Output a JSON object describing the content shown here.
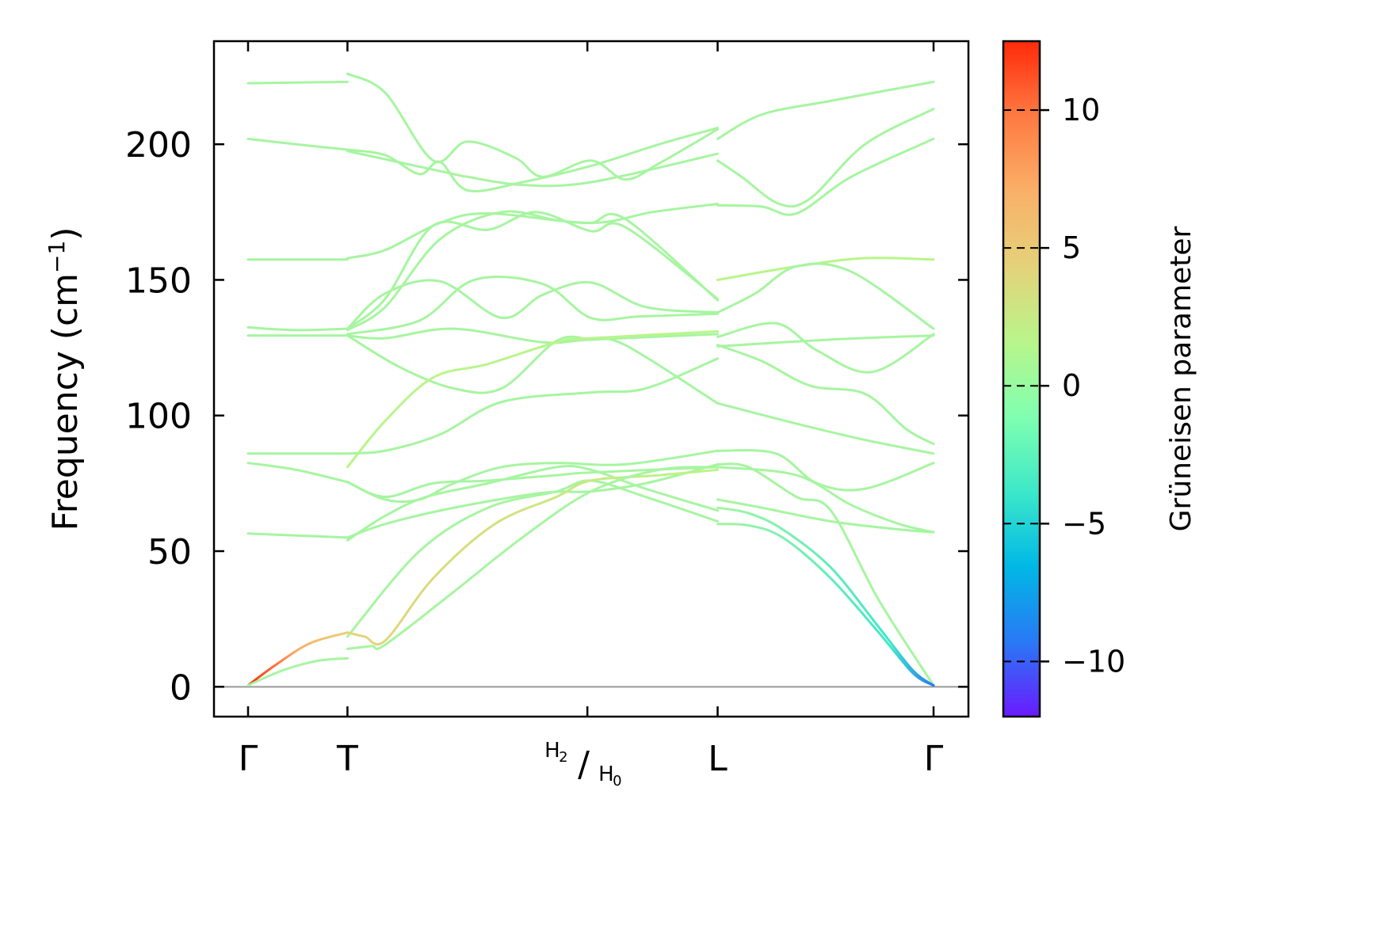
{
  "chart_data": {
    "type": "line",
    "ylabel": "Frequency (cm",
    "ylabel_sup": "−1",
    "ylabel_close": ")",
    "ylim": [
      -11,
      238
    ],
    "yticks": [
      0,
      50,
      100,
      150,
      200
    ],
    "path_labels": [
      {
        "label": "Γ",
        "position": 0.0
      },
      {
        "label": "T",
        "position": 0.145
      },
      {
        "label_top": "H",
        "label_top_sub": "2",
        "label_bottom": "H",
        "label_bottom_sub": "0",
        "position": 0.495
      },
      {
        "label": "L",
        "position": 0.685
      },
      {
        "label": "Γ",
        "position": 1.0
      }
    ],
    "zero_line": true,
    "colorbar": {
      "label": "Grüneisen parameter",
      "range": [
        -12,
        12.5
      ],
      "ticks": [
        -10,
        -5,
        0,
        5,
        10
      ],
      "tick_labels": [
        "−10",
        "−5",
        "0",
        "5",
        "10"
      ],
      "colormap": [
        "#6a1bff",
        "#2979f5",
        "#00b8e6",
        "#3de8c8",
        "#80ffb0",
        "#b9f58a",
        "#e4d27a",
        "#f9b068",
        "#ff7a42",
        "#ff2a0a"
      ]
    },
    "series": [
      {
        "color": "#a6f5a0",
        "x": [
          0,
          0.145
        ],
        "y": [
          222.5,
          223.0
        ]
      },
      {
        "color": "#a6f5a0",
        "x": [
          0,
          0.07,
          0.145
        ],
        "y": [
          202.0,
          200.0,
          198.0
        ]
      },
      {
        "color": "#a6f5a0",
        "x": [
          0,
          0.145
        ],
        "y": [
          157.5,
          157.5
        ]
      },
      {
        "color": "#a6f5a0",
        "x": [
          0,
          0.07,
          0.145
        ],
        "y": [
          132.5,
          131.5,
          132.0
        ]
      },
      {
        "color": "#a6f5a0",
        "x": [
          0,
          0.145
        ],
        "y": [
          129.5,
          129.5
        ]
      },
      {
        "color": "#a6f5a0",
        "x": [
          0,
          0.145
        ],
        "y": [
          86.0,
          86.0
        ]
      },
      {
        "color": "#a6f5a0",
        "x": [
          0,
          0.07,
          0.145
        ],
        "y": [
          82.5,
          80.0,
          75.5
        ]
      },
      {
        "color": "#a6f5a0",
        "x": [
          0,
          0.145
        ],
        "y": [
          56.5,
          55.0
        ]
      },
      {
        "color": "#ff3010",
        "gradient": [
          "#ff2a0a",
          "#f9b068",
          "#e4d27a"
        ],
        "x": [
          0,
          0.04,
          0.09,
          0.145
        ],
        "y": [
          0.5,
          8.0,
          16.0,
          20.0
        ]
      },
      {
        "color": "#a6f5a0",
        "x": [
          0,
          0.05,
          0.1,
          0.145
        ],
        "y": [
          0.5,
          6.0,
          9.5,
          10.5
        ]
      },
      {
        "color": "#a6f5a0",
        "x": [
          0.145,
          0.2,
          0.27,
          0.32,
          0.39,
          0.43,
          0.5,
          0.55,
          0.6,
          0.685
        ],
        "y": [
          226.0,
          219.0,
          194.0,
          201.0,
          195.0,
          188.0,
          194.0,
          187.0,
          193.0,
          205.5
        ]
      },
      {
        "color": "#a6f5a0",
        "x": [
          0.145,
          0.2,
          0.25,
          0.28,
          0.32,
          0.4,
          0.5,
          0.6,
          0.685
        ],
        "y": [
          198.0,
          196.0,
          189.0,
          193.5,
          183.0,
          186.0,
          192.0,
          200.0,
          206.0
        ]
      },
      {
        "color": "#a6f5a0",
        "x": [
          0.145,
          0.3,
          0.32,
          0.4,
          0.5,
          0.685
        ],
        "y": [
          197.5,
          189.0,
          188.0,
          185.0,
          186.0,
          196.5
        ]
      },
      {
        "color": "#a6f5a0",
        "x": [
          0.145,
          0.2,
          0.28,
          0.35,
          0.5,
          0.59,
          0.685
        ],
        "y": [
          158.0,
          161.0,
          171.0,
          174.5,
          171.0,
          175.0,
          178.0
        ]
      },
      {
        "color": "#a6f5a0",
        "x": [
          0.145,
          0.2,
          0.27,
          0.35,
          0.42,
          0.5,
          0.55,
          0.685
        ],
        "y": [
          132.0,
          143.0,
          170.0,
          168.5,
          175.0,
          168.0,
          169.5,
          143.0
        ]
      },
      {
        "color": "#a6f5a0",
        "x": [
          0.145,
          0.2,
          0.28,
          0.37,
          0.45,
          0.5,
          0.55,
          0.685
        ],
        "y": [
          131.5,
          140.0,
          165.0,
          175.0,
          172.0,
          171.0,
          172.5,
          142.5
        ]
      },
      {
        "color": "#a6f5a0",
        "x": [
          0.145,
          0.2,
          0.28,
          0.37,
          0.43,
          0.5,
          0.58,
          0.685
        ],
        "y": [
          132.0,
          145.0,
          149.5,
          136.0,
          144.5,
          149.0,
          140.0,
          138.0
        ]
      },
      {
        "color": "#a6f5a0",
        "x": [
          0.145,
          0.25,
          0.33,
          0.43,
          0.5,
          0.57,
          0.685
        ],
        "y": [
          130.0,
          135.0,
          150.0,
          148.5,
          136.0,
          136.5,
          137.5
        ]
      },
      {
        "color": "#a6f5a0",
        "x": [
          0.145,
          0.2,
          0.3,
          0.43,
          0.5,
          0.685
        ],
        "y": [
          129.5,
          128.5,
          132.0,
          127.0,
          128.0,
          130.0
        ]
      },
      {
        "color": "#a6f5a0",
        "x": [
          0.145,
          0.22,
          0.3,
          0.37,
          0.45,
          0.5,
          0.55,
          0.685
        ],
        "y": [
          129.5,
          118.0,
          110.0,
          110.0,
          127.5,
          128.0,
          126.0,
          104.5
        ]
      },
      {
        "color": "#b9f58a",
        "x": [
          0.145,
          0.2,
          0.27,
          0.35,
          0.45,
          0.5,
          0.685
        ],
        "y": [
          81.0,
          98.0,
          114.0,
          119.0,
          127.0,
          128.5,
          131.0
        ]
      },
      {
        "color": "#a6f5a0",
        "x": [
          0.145,
          0.2,
          0.28,
          0.37,
          0.5,
          0.58,
          0.685
        ],
        "y": [
          86.0,
          87.0,
          93.0,
          105.0,
          108.5,
          110.0,
          121.0
        ]
      },
      {
        "color": "#a6f5a0",
        "x": [
          0.145,
          0.2,
          0.27,
          0.35,
          0.45,
          0.5,
          0.685
        ],
        "y": [
          75.5,
          70.0,
          75.0,
          76.0,
          78.0,
          79.0,
          81.0
        ]
      },
      {
        "color": "#a6f5a0",
        "x": [
          0.145,
          0.2,
          0.25,
          0.3,
          0.37,
          0.45,
          0.55,
          0.685
        ],
        "y": [
          75.5,
          69.0,
          69.0,
          75.0,
          81.0,
          82.5,
          82.0,
          87.0
        ]
      },
      {
        "color": "#a6f5a0",
        "x": [
          0.145,
          0.2,
          0.26,
          0.35,
          0.45,
          0.5,
          0.58,
          0.685
        ],
        "y": [
          54.0,
          63.0,
          70.0,
          75.0,
          81.0,
          80.0,
          73.0,
          65.0
        ]
      },
      {
        "color": "#a6f5a0",
        "x": [
          0.145,
          0.2,
          0.3,
          0.43,
          0.5,
          0.58,
          0.685
        ],
        "y": [
          55.0,
          60.0,
          66.0,
          71.5,
          72.0,
          75.0,
          82.0
        ]
      },
      {
        "color": "#a6f5a0",
        "x": [
          0.145,
          0.25,
          0.35,
          0.45,
          0.5,
          0.58,
          0.685
        ],
        "y": [
          18.5,
          50.0,
          66.0,
          72.0,
          76.0,
          70.0,
          61.0
        ]
      },
      {
        "color": "#e4d27a",
        "gradient": [
          "#e4d27a",
          "#b9f58a"
        ],
        "x": [
          0.145,
          0.17,
          0.2,
          0.27,
          0.36,
          0.45,
          0.5,
          0.6,
          0.685
        ],
        "y": [
          20.0,
          18.5,
          17.0,
          40.0,
          60.0,
          70.0,
          76.0,
          78.0,
          80.0
        ]
      },
      {
        "color": "#a6f5a0",
        "x": [
          0.145,
          0.18,
          0.2,
          0.3,
          0.4,
          0.5,
          0.6,
          0.685
        ],
        "y": [
          14.0,
          15.0,
          15.5,
          35.0,
          55.0,
          72.0,
          80.0,
          81.0
        ]
      },
      {
        "color": "#a6f5a0",
        "x": [
          0.685,
          0.75,
          0.85,
          1.0
        ],
        "y": [
          202.0,
          211.0,
          216.0,
          223.0
        ]
      },
      {
        "color": "#a6f5a0",
        "x": [
          0.685,
          0.72,
          0.775,
          0.82,
          0.9,
          1.0
        ],
        "y": [
          194.0,
          188.0,
          178.0,
          180.0,
          200.0,
          213.0
        ]
      },
      {
        "color": "#a6f5a0",
        "x": [
          0.685,
          0.75,
          0.8,
          0.88,
          1.0
        ],
        "y": [
          177.5,
          177.0,
          174.5,
          188.0,
          202.0
        ]
      },
      {
        "color": "#b9f58a",
        "x": [
          0.685,
          0.8,
          0.9,
          1.0
        ],
        "y": [
          150.0,
          155.0,
          158.0,
          157.5
        ]
      },
      {
        "color": "#a6f5a0",
        "x": [
          0.685,
          0.74,
          0.8,
          0.88,
          1.0
        ],
        "y": [
          138.0,
          145.0,
          155.0,
          153.0,
          132.0
        ]
      },
      {
        "color": "#a6f5a0",
        "x": [
          0.685,
          0.77,
          0.83,
          0.91,
          1.0
        ],
        "y": [
          129.0,
          134.0,
          124.0,
          116.0,
          130.0
        ]
      },
      {
        "color": "#a6f5a0",
        "x": [
          0.685,
          0.85,
          1.0
        ],
        "y": [
          125.5,
          128.0,
          129.5
        ]
      },
      {
        "color": "#a6f5a0",
        "x": [
          0.685,
          0.75,
          0.82,
          0.9,
          0.96,
          1.0
        ],
        "y": [
          126.0,
          120.0,
          111.0,
          108.0,
          95.0,
          89.5
        ]
      },
      {
        "color": "#a6f5a0",
        "x": [
          0.685,
          0.8,
          0.9,
          1.0
        ],
        "y": [
          104.5,
          97.0,
          91.0,
          86.0
        ]
      },
      {
        "color": "#a6f5a0",
        "x": [
          0.685,
          0.77,
          0.83,
          0.9,
          1.0
        ],
        "y": [
          87.0,
          86.0,
          75.0,
          73.0,
          82.5
        ]
      },
      {
        "color": "#a6f5a0",
        "x": [
          0.685,
          0.8,
          0.88,
          0.95,
          1.0
        ],
        "y": [
          81.0,
          78.0,
          67.0,
          60.0,
          57.0
        ]
      },
      {
        "color": "#a6f5a0",
        "x": [
          0.685,
          0.75,
          0.85,
          0.95,
          1.0
        ],
        "y": [
          69.0,
          66.0,
          61.0,
          58.0,
          57.0
        ]
      },
      {
        "color": "#a6f5a0",
        "x": [
          0.685,
          0.73,
          0.8,
          0.85,
          0.92,
          1.0
        ],
        "y": [
          82.0,
          81.0,
          70.0,
          65.0,
          32.0,
          0.5
        ]
      },
      {
        "color": "#a6f5a0",
        "gradient": [
          "#a6f5a0",
          "#3de8c8",
          "#2979f5"
        ],
        "x": [
          0.685,
          0.73,
          0.78,
          0.85,
          0.92,
          0.97,
          1.0
        ],
        "y": [
          66.0,
          64.0,
          58.0,
          44.0,
          22.0,
          6.0,
          0.5
        ]
      },
      {
        "color": "#a6f5a0",
        "gradient": [
          "#a6f5a0",
          "#3de8c8",
          "#2979f5"
        ],
        "x": [
          0.685,
          0.73,
          0.78,
          0.85,
          0.92,
          0.97,
          1.0
        ],
        "y": [
          60.0,
          59.5,
          55.0,
          40.0,
          20.0,
          5.0,
          0.5
        ]
      }
    ]
  }
}
